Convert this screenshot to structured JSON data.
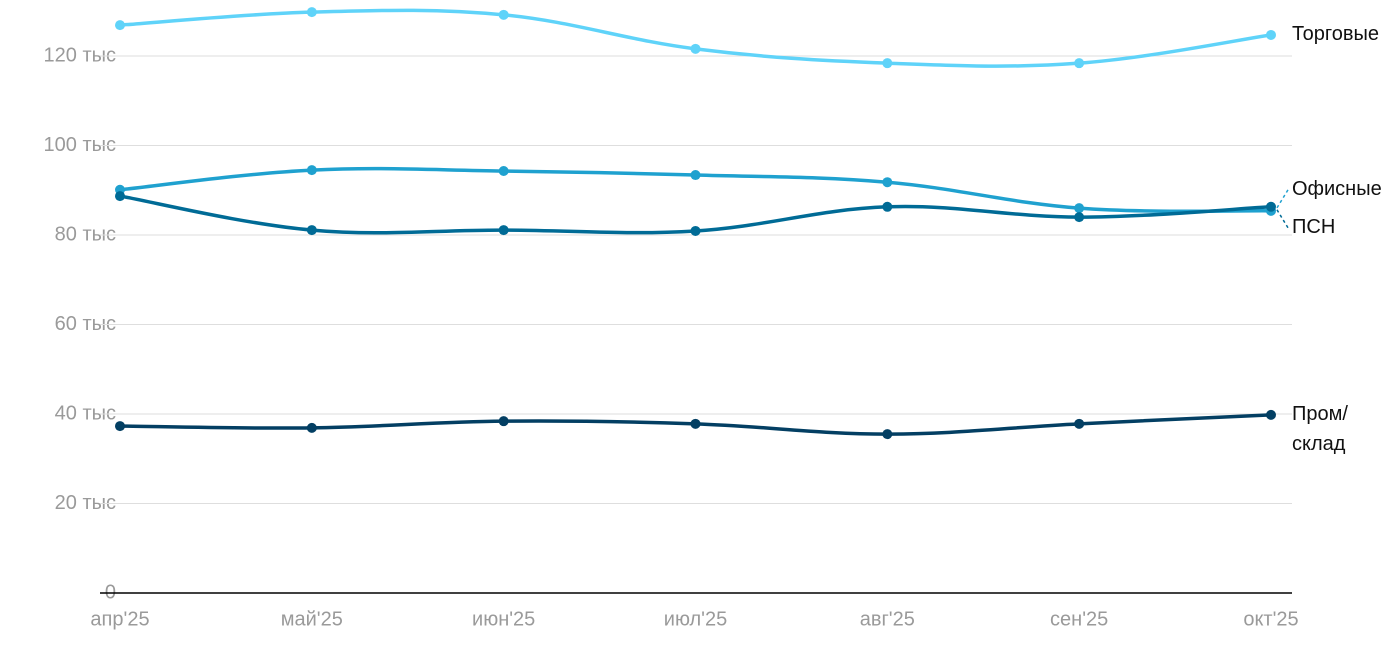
{
  "chart_data": {
    "type": "line",
    "categories": [
      "апр'25",
      "май'25",
      "июн'25",
      "июл'25",
      "авг'25",
      "сен'25",
      "окт'25"
    ],
    "series": [
      {
        "name": "Торговые",
        "color": "#5fd3f9",
        "values": [
          126900,
          129800,
          129200,
          121600,
          118400,
          118400,
          124700
        ]
      },
      {
        "name": "Офисные",
        "color": "#1fa1cf",
        "values": [
          90100,
          94500,
          94300,
          93400,
          91800,
          86000,
          85400
        ]
      },
      {
        "name": "ПСН",
        "color": "#006b96",
        "values": [
          88700,
          81100,
          81100,
          80900,
          86300,
          84000,
          86300
        ]
      },
      {
        "name": "Пром/склад",
        "color": "#033f63",
        "values": [
          37300,
          36900,
          38400,
          37800,
          35500,
          37800,
          39800
        ]
      }
    ],
    "ylim": [
      0,
      132500
    ],
    "yticks": [
      0,
      {
        "value": 20000,
        "label": "20 тыс"
      },
      {
        "value": 40000,
        "label": "40 тыс"
      },
      {
        "value": 60000,
        "label": "60 тыс"
      },
      {
        "value": 80000,
        "label": "80 тыс"
      },
      {
        "value": 100000,
        "label": "100 тыс"
      },
      {
        "value": 120000,
        "label": "120 тыс"
      }
    ],
    "grid": true
  }
}
